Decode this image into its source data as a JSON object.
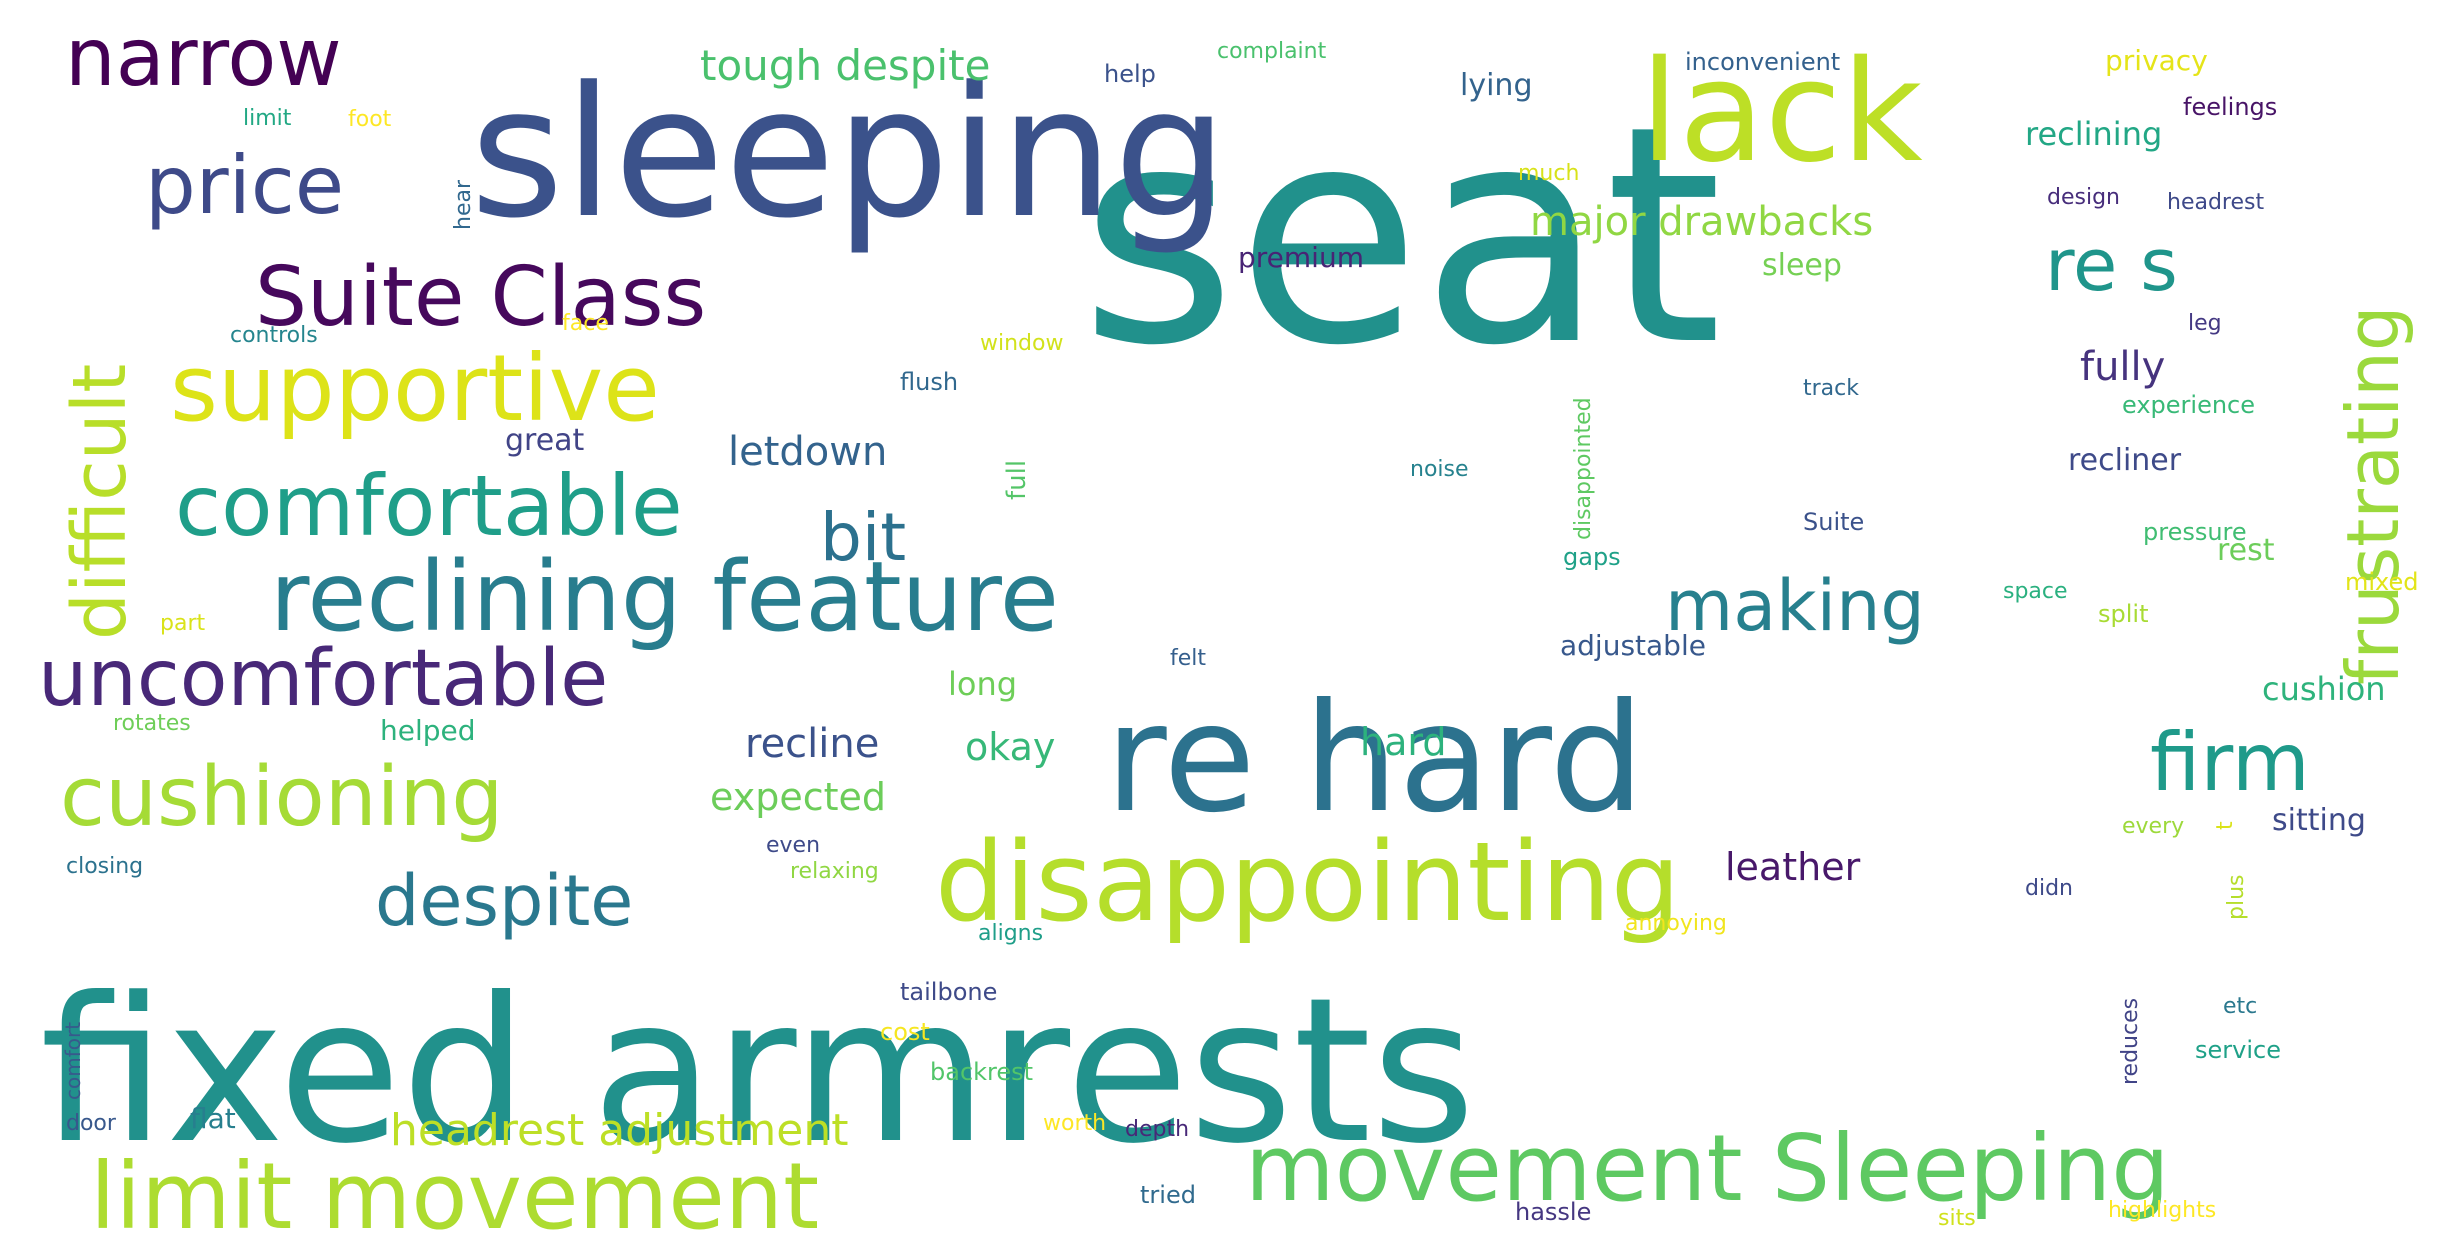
{
  "word_cloud": {
    "words": [
      {
        "text": "seat",
        "color": "#21918c"
      },
      {
        "text": "fixed armrests",
        "color": "#21918c"
      },
      {
        "text": "sleeping",
        "color": "#3b528b"
      },
      {
        "text": "re hard",
        "color": "#2c728e"
      },
      {
        "text": "lack",
        "color": "#bddf26"
      },
      {
        "text": "disappointing",
        "color": "#b5de2b"
      },
      {
        "text": "movement Sleeping",
        "color": "#5ec962"
      },
      {
        "text": "limit movement",
        "color": "#addc30"
      },
      {
        "text": "reclining feature",
        "color": "#287d8e"
      },
      {
        "text": "narrow",
        "color": "#440154"
      },
      {
        "text": "Suite Class",
        "color": "#46085c"
      },
      {
        "text": "supportive",
        "color": "#dde318"
      },
      {
        "text": "comfortable",
        "color": "#1f9e89"
      },
      {
        "text": "uncomfortable",
        "color": "#482878"
      },
      {
        "text": "cushioning",
        "color": "#a5db36"
      },
      {
        "text": "price",
        "color": "#3e4a89"
      },
      {
        "text": "difficult",
        "color": "#b8de29"
      },
      {
        "text": "frustrating",
        "color": "#9bd93c"
      },
      {
        "text": "re s",
        "color": "#1f958b"
      },
      {
        "text": "firm",
        "color": "#1f9a8a"
      },
      {
        "text": "making",
        "color": "#27808e"
      },
      {
        "text": "bit",
        "color": "#2c718e"
      },
      {
        "text": "despite",
        "color": "#2a788e"
      },
      {
        "text": "tough despite",
        "color": "#4ac16d"
      },
      {
        "text": "major drawbacks",
        "color": "#90d743"
      },
      {
        "text": "headrest adjustment",
        "color": "#bddf26"
      },
      {
        "text": "letdown",
        "color": "#33638d"
      },
      {
        "text": "recline",
        "color": "#3b528b"
      },
      {
        "text": "expected",
        "color": "#6ccd5a"
      },
      {
        "text": "okay",
        "color": "#37b878"
      },
      {
        "text": "hard",
        "color": "#2db27d"
      },
      {
        "text": "leather",
        "color": "#48186a"
      },
      {
        "text": "fully",
        "color": "#46337e"
      },
      {
        "text": "reclining",
        "color": "#22a785"
      },
      {
        "text": "great",
        "color": "#414487"
      },
      {
        "text": "lying",
        "color": "#33638d"
      },
      {
        "text": "premium",
        "color": "#482475"
      },
      {
        "text": "sleep",
        "color": "#75d054"
      },
      {
        "text": "recliner",
        "color": "#3e4a89"
      },
      {
        "text": "adjustable",
        "color": "#38588c"
      },
      {
        "text": "privacy",
        "color": "#e5e419"
      },
      {
        "text": "feelings",
        "color": "#481467"
      },
      {
        "text": "inconvenient",
        "color": "#34618d"
      },
      {
        "text": "complaint",
        "color": "#4ac16d"
      },
      {
        "text": "help",
        "color": "#3b528b"
      },
      {
        "text": "limit",
        "color": "#22a884"
      },
      {
        "text": "foot",
        "color": "#fde725"
      },
      {
        "text": "much",
        "color": "#d8e219"
      },
      {
        "text": "design",
        "color": "#472d7b"
      },
      {
        "text": "headrest",
        "color": "#3e4989"
      },
      {
        "text": "leg",
        "color": "#443983"
      },
      {
        "text": "controls",
        "color": "#25858e"
      },
      {
        "text": "face",
        "color": "#fde725"
      },
      {
        "text": "window",
        "color": "#d2e21b"
      },
      {
        "text": "flush",
        "color": "#31688e"
      },
      {
        "text": "full",
        "color": "#54c568"
      },
      {
        "text": "noise",
        "color": "#26828e"
      },
      {
        "text": "disappointed",
        "color": "#5ec962"
      },
      {
        "text": "track",
        "color": "#31688e"
      },
      {
        "text": "experience",
        "color": "#38b977"
      },
      {
        "text": "pressure",
        "color": "#40bd72"
      },
      {
        "text": "Suite",
        "color": "#3b528b"
      },
      {
        "text": "gaps",
        "color": "#1fa188"
      },
      {
        "text": "rest",
        "color": "#6ccd5a"
      },
      {
        "text": "space",
        "color": "#2ab07f"
      },
      {
        "text": "mixed",
        "color": "#e2e418"
      },
      {
        "text": "split",
        "color": "#a8db34"
      },
      {
        "text": "part",
        "color": "#dae319"
      },
      {
        "text": "felt",
        "color": "#355f8d"
      },
      {
        "text": "long",
        "color": "#6ece58"
      },
      {
        "text": "cushion",
        "color": "#2eb37c"
      },
      {
        "text": "rotates",
        "color": "#6ece58"
      },
      {
        "text": "helped",
        "color": "#2db27d"
      },
      {
        "text": "hear",
        "color": "#31688e"
      },
      {
        "text": "sitting",
        "color": "#3e4a89"
      },
      {
        "text": "every",
        "color": "#9dd93b"
      },
      {
        "text": "t",
        "color": "#dae319"
      },
      {
        "text": "closing",
        "color": "#2c728e"
      },
      {
        "text": "even",
        "color": "#3e4a89"
      },
      {
        "text": "relaxing",
        "color": "#90d743"
      },
      {
        "text": "didn",
        "color": "#3e4a89"
      },
      {
        "text": "plus",
        "color": "#b5de2b"
      },
      {
        "text": "annoying",
        "color": "#f1e51d"
      },
      {
        "text": "aligns",
        "color": "#1f9e89"
      },
      {
        "text": "tailbone",
        "color": "#3e4a89"
      },
      {
        "text": "comfort",
        "color": "#38598c"
      },
      {
        "text": "cost",
        "color": "#f6e620"
      },
      {
        "text": "reduces",
        "color": "#414487"
      },
      {
        "text": "etc",
        "color": "#2a788e"
      },
      {
        "text": "service",
        "color": "#1fa188"
      },
      {
        "text": "backrest",
        "color": "#52c569"
      },
      {
        "text": "door",
        "color": "#38588c"
      },
      {
        "text": "flat",
        "color": "#277f8e"
      },
      {
        "text": "worth",
        "color": "#fde725"
      },
      {
        "text": "depth",
        "color": "#482878"
      },
      {
        "text": "tried",
        "color": "#306a8e"
      },
      {
        "text": "hassle",
        "color": "#453781"
      },
      {
        "text": "sits",
        "color": "#d0e11c"
      },
      {
        "text": "highlights",
        "color": "#fde725"
      }
    ]
  }
}
